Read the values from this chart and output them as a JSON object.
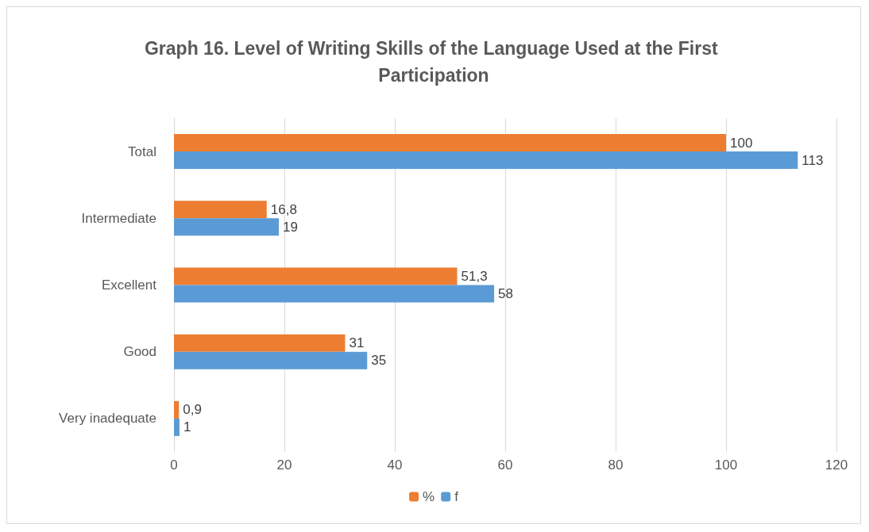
{
  "chart_data": {
    "type": "bar",
    "orientation": "horizontal",
    "title": "Graph 16. Level of Writing Skills of the Language Used at the First Participation",
    "categories": [
      "Total",
      "Intermediate",
      "Excellent",
      "Good",
      "Very inadequate"
    ],
    "series": [
      {
        "name": "%",
        "color": "#ed7d31",
        "values": [
          100,
          16.8,
          51.3,
          31,
          0.9
        ],
        "value_labels": [
          "100",
          "16,8",
          "51,3",
          "31",
          "0,9"
        ]
      },
      {
        "name": "f",
        "color": "#5b9bd5",
        "values": [
          113,
          19,
          58,
          35,
          1
        ],
        "value_labels": [
          "113",
          "19",
          "58",
          "35",
          "1"
        ]
      }
    ],
    "xlim": [
      0,
      120
    ],
    "xticks": [
      0,
      20,
      40,
      60,
      80,
      100,
      120
    ],
    "grid": "x",
    "legend": "bottom"
  }
}
